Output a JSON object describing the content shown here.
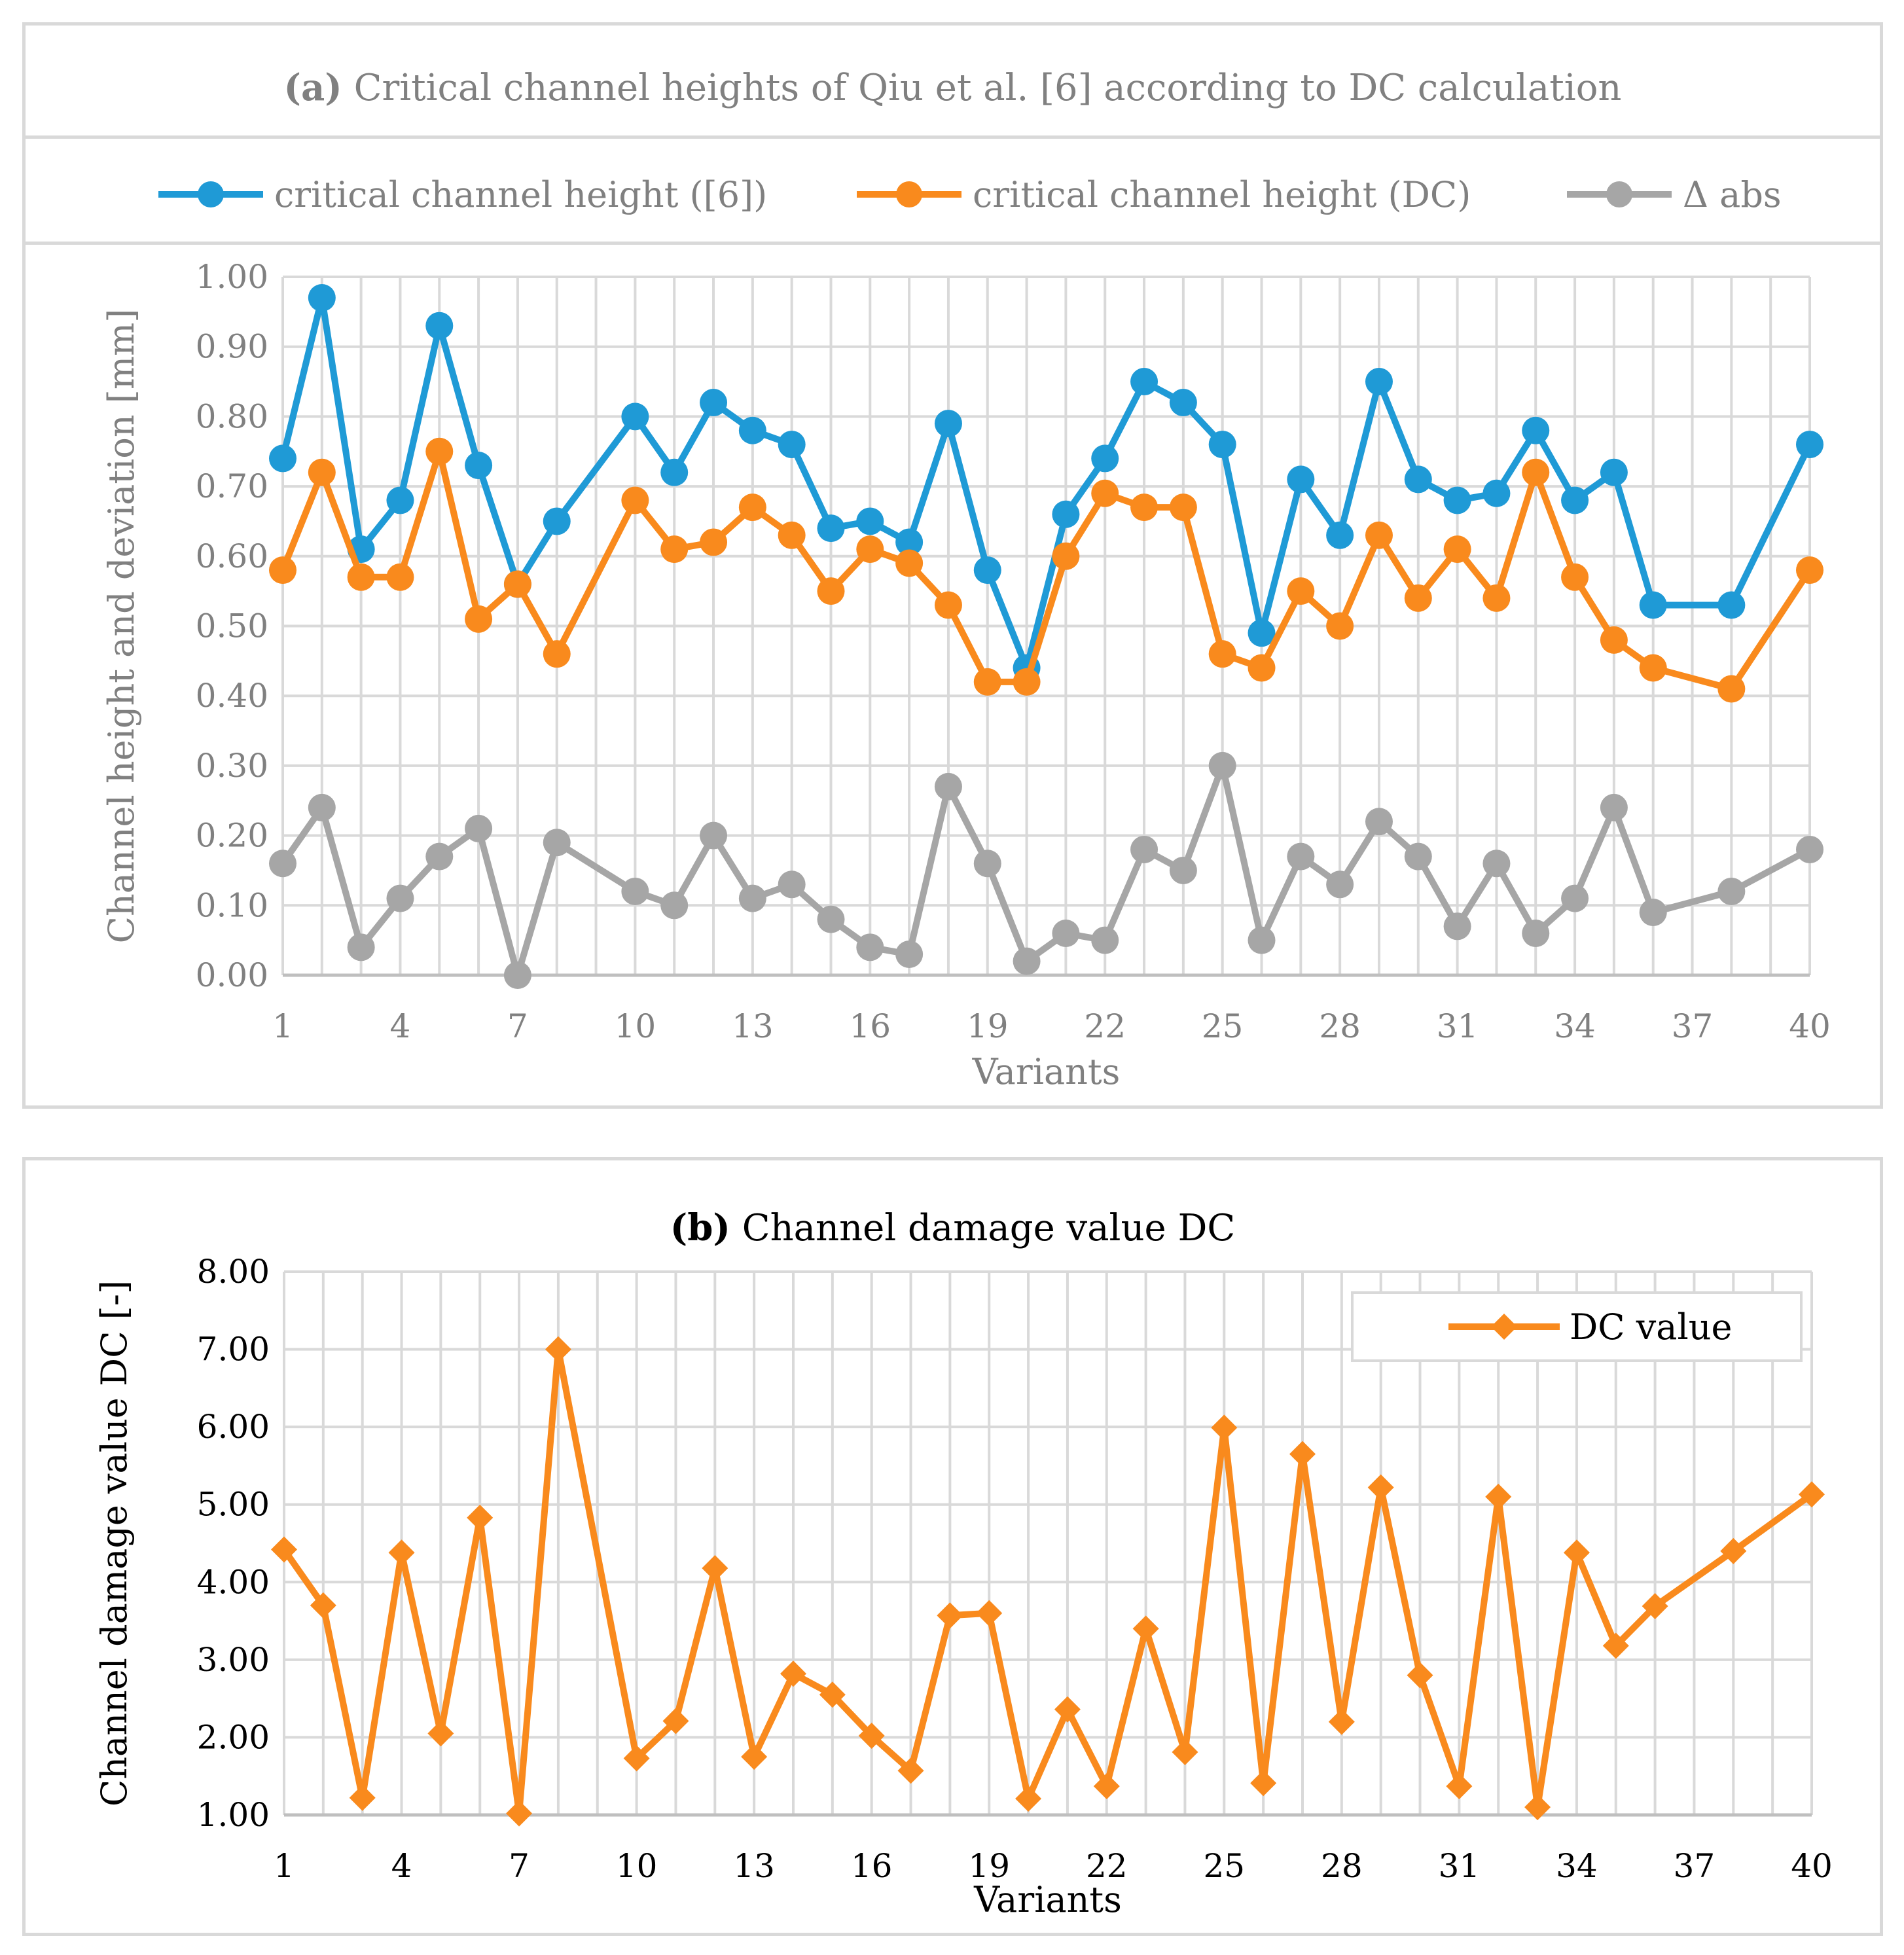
{
  "panel_a": {
    "title_letter": "(a)",
    "title_text": "Critical channel heights of Qiu et al. [6] according to DC calculation"
  },
  "panel_b": {
    "title_letter": "(b)",
    "title_text": "Channel damage value DC"
  },
  "colors": {
    "blue": "#1f9ad6",
    "orange": "#f98a1d",
    "gray": "#a6a6a6",
    "grid": "#d9d9d9",
    "axis_text": "#808080"
  },
  "chart_data": [
    {
      "type": "line",
      "title": "(a) Critical channel heights of Qiu et al. [6] according to DC calculation",
      "xlabel": "Variants",
      "ylabel": "Channel height and deviation [mm]",
      "xlim": [
        1,
        40
      ],
      "ylim": [
        0,
        1
      ],
      "x_ticks": [
        1,
        4,
        7,
        10,
        13,
        16,
        19,
        22,
        25,
        28,
        31,
        34,
        37,
        40
      ],
      "y_ticks": [
        "0.00",
        "0.10",
        "0.20",
        "0.30",
        "0.40",
        "0.50",
        "0.60",
        "0.70",
        "0.80",
        "0.90",
        "1.00"
      ],
      "grid": true,
      "legend_position": "top",
      "series": [
        {
          "name": "critical channel height ([6])",
          "color": "#1f9ad6",
          "marker": "circle",
          "x": [
            1,
            2,
            3,
            4,
            5,
            6,
            7,
            8,
            10,
            11,
            12,
            13,
            14,
            15,
            16,
            17,
            18,
            19,
            20,
            21,
            22,
            23,
            24,
            25,
            26,
            27,
            28,
            29,
            30,
            31,
            32,
            33,
            34,
            35,
            36,
            38,
            40
          ],
          "y": [
            0.74,
            0.97,
            0.61,
            0.68,
            0.93,
            0.73,
            0.56,
            0.65,
            0.8,
            0.72,
            0.82,
            0.78,
            0.76,
            0.64,
            0.65,
            0.62,
            0.79,
            0.58,
            0.44,
            0.66,
            0.74,
            0.85,
            0.82,
            0.76,
            0.49,
            0.71,
            0.63,
            0.85,
            0.71,
            0.68,
            0.69,
            0.78,
            0.68,
            0.72,
            0.53,
            0.53,
            0.76
          ]
        },
        {
          "name": "critical channel height (DC)",
          "color": "#f98a1d",
          "marker": "circle",
          "x": [
            1,
            2,
            3,
            4,
            5,
            6,
            7,
            8,
            10,
            11,
            12,
            13,
            14,
            15,
            16,
            17,
            18,
            19,
            20,
            21,
            22,
            23,
            24,
            25,
            26,
            27,
            28,
            29,
            30,
            31,
            32,
            33,
            34,
            35,
            36,
            38,
            40
          ],
          "y": [
            0.58,
            0.72,
            0.57,
            0.57,
            0.75,
            0.51,
            0.56,
            0.46,
            0.68,
            0.61,
            0.62,
            0.67,
            0.63,
            0.55,
            0.61,
            0.59,
            0.53,
            0.42,
            0.42,
            0.6,
            0.69,
            0.67,
            0.67,
            0.46,
            0.44,
            0.55,
            0.5,
            0.63,
            0.54,
            0.61,
            0.54,
            0.72,
            0.57,
            0.48,
            0.44,
            0.41,
            0.58
          ]
        },
        {
          "name": "Δ abs",
          "color": "#a6a6a6",
          "marker": "circle",
          "x": [
            1,
            2,
            3,
            4,
            5,
            6,
            7,
            8,
            10,
            11,
            12,
            13,
            14,
            15,
            16,
            17,
            18,
            19,
            20,
            21,
            22,
            23,
            24,
            25,
            26,
            27,
            28,
            29,
            30,
            31,
            32,
            33,
            34,
            35,
            36,
            38,
            40
          ],
          "y": [
            0.16,
            0.24,
            0.04,
            0.11,
            0.17,
            0.21,
            0.0,
            0.19,
            0.12,
            0.1,
            0.2,
            0.11,
            0.13,
            0.08,
            0.04,
            0.03,
            0.27,
            0.16,
            0.02,
            0.06,
            0.05,
            0.18,
            0.15,
            0.3,
            0.05,
            0.17,
            0.13,
            0.22,
            0.17,
            0.07,
            0.16,
            0.06,
            0.11,
            0.24,
            0.09,
            0.12,
            0.18
          ]
        }
      ]
    },
    {
      "type": "line",
      "title": "(b) Channel damage value DC",
      "xlabel": "Variants",
      "ylabel": "Channel damage value DC [-]",
      "xlim": [
        1,
        40
      ],
      "ylim": [
        1,
        8
      ],
      "x_ticks": [
        1,
        4,
        7,
        10,
        13,
        16,
        19,
        22,
        25,
        28,
        31,
        34,
        37,
        40
      ],
      "y_ticks": [
        "1.00",
        "2.00",
        "3.00",
        "4.00",
        "5.00",
        "6.00",
        "7.00",
        "8.00"
      ],
      "grid": true,
      "legend_position": "top-right",
      "series": [
        {
          "name": "DC value",
          "color": "#f98a1d",
          "marker": "diamond",
          "x": [
            1,
            2,
            3,
            4,
            5,
            6,
            7,
            8,
            10,
            11,
            12,
            13,
            14,
            15,
            16,
            17,
            18,
            19,
            20,
            21,
            22,
            23,
            24,
            25,
            26,
            27,
            28,
            29,
            30,
            31,
            32,
            33,
            34,
            35,
            36,
            38,
            40
          ],
          "y": [
            4.42,
            3.7,
            1.22,
            4.38,
            2.05,
            4.83,
            1.02,
            7.0,
            1.73,
            2.21,
            4.18,
            1.75,
            2.82,
            2.55,
            2.02,
            1.57,
            3.57,
            3.6,
            1.21,
            2.36,
            1.37,
            3.4,
            1.81,
            5.99,
            1.41,
            5.65,
            2.2,
            5.22,
            2.8,
            1.37,
            5.1,
            1.1,
            4.38,
            3.18,
            3.69,
            4.4,
            5.13
          ]
        }
      ]
    }
  ]
}
